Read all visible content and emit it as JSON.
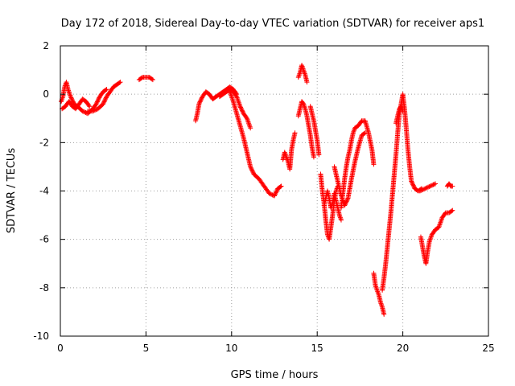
{
  "chart_data": {
    "type": "scatter",
    "title": "Day 172 of 2018, Sidereal Day-to-day VTEC variation (SDTVAR) for receiver aps1",
    "xlabel": "GPS time / hours",
    "ylabel": "SDTVAR / TECUs",
    "xlim": [
      0,
      25
    ],
    "ylim": [
      -10,
      2
    ],
    "xticks": [
      0,
      5,
      10,
      15,
      20,
      25
    ],
    "yticks": [
      -10,
      -8,
      -6,
      -4,
      -2,
      0,
      2
    ],
    "grid": true,
    "marker": "plus",
    "color": "#ff0000",
    "series": [
      {
        "name": "aps1",
        "segments": [
          [
            [
              0.05,
              -0.3
            ],
            [
              0.15,
              -0.1
            ],
            [
              0.25,
              0.3
            ],
            [
              0.35,
              0.5
            ],
            [
              0.45,
              0.2
            ],
            [
              0.6,
              -0.1
            ],
            [
              0.8,
              -0.4
            ],
            [
              1.0,
              -0.5
            ],
            [
              1.3,
              -0.7
            ],
            [
              1.6,
              -0.8
            ],
            [
              1.9,
              -0.6
            ],
            [
              2.1,
              -0.4
            ],
            [
              2.3,
              -0.1
            ],
            [
              2.5,
              0.1
            ],
            [
              2.7,
              0.2
            ]
          ],
          [
            [
              0.1,
              -0.6
            ],
            [
              0.3,
              -0.5
            ],
            [
              0.5,
              -0.3
            ],
            [
              0.7,
              -0.5
            ],
            [
              0.9,
              -0.6
            ],
            [
              1.1,
              -0.4
            ],
            [
              1.3,
              -0.2
            ],
            [
              1.5,
              -0.3
            ],
            [
              1.7,
              -0.5
            ]
          ],
          [
            [
              1.6,
              -0.7
            ],
            [
              1.9,
              -0.7
            ],
            [
              2.2,
              -0.6
            ],
            [
              2.5,
              -0.4
            ],
            [
              2.7,
              -0.1
            ],
            [
              2.9,
              0.1
            ],
            [
              3.1,
              0.3
            ],
            [
              3.3,
              0.4
            ],
            [
              3.5,
              0.5
            ]
          ],
          [
            [
              4.6,
              0.6
            ],
            [
              4.8,
              0.7
            ],
            [
              5.0,
              0.7
            ],
            [
              5.2,
              0.7
            ],
            [
              5.4,
              0.6
            ]
          ],
          [
            [
              7.9,
              -1.1
            ],
            [
              8.0,
              -0.8
            ],
            [
              8.1,
              -0.4
            ],
            [
              8.3,
              -0.1
            ],
            [
              8.5,
              0.1
            ],
            [
              8.7,
              0.0
            ],
            [
              8.9,
              -0.2
            ],
            [
              9.1,
              -0.1
            ],
            [
              9.3,
              0.0
            ],
            [
              9.5,
              0.1
            ],
            [
              9.7,
              0.2
            ],
            [
              9.9,
              0.3
            ],
            [
              10.1,
              0.2
            ],
            [
              10.3,
              0.0
            ]
          ],
          [
            [
              9.3,
              -0.1
            ],
            [
              9.5,
              0.0
            ],
            [
              9.7,
              0.1
            ],
            [
              9.9,
              0.2
            ],
            [
              10.1,
              0.1
            ],
            [
              10.3,
              -0.1
            ],
            [
              10.5,
              -0.5
            ],
            [
              10.7,
              -0.8
            ],
            [
              10.9,
              -1.0
            ],
            [
              11.1,
              -1.4
            ]
          ],
          [
            [
              9.9,
              0.1
            ],
            [
              10.1,
              -0.3
            ],
            [
              10.3,
              -0.8
            ],
            [
              10.5,
              -1.3
            ],
            [
              10.7,
              -1.8
            ],
            [
              10.9,
              -2.4
            ],
            [
              11.1,
              -3.0
            ],
            [
              11.3,
              -3.3
            ],
            [
              11.6,
              -3.5
            ],
            [
              11.9,
              -3.8
            ],
            [
              12.2,
              -4.1
            ],
            [
              12.5,
              -4.2
            ],
            [
              12.7,
              -3.9
            ],
            [
              12.9,
              -3.8
            ]
          ],
          [
            [
              13.0,
              -2.7
            ],
            [
              13.1,
              -2.4
            ],
            [
              13.2,
              -2.6
            ],
            [
              13.3,
              -2.8
            ],
            [
              13.4,
              -3.1
            ],
            [
              13.5,
              -2.3
            ],
            [
              13.6,
              -1.9
            ],
            [
              13.7,
              -1.6
            ]
          ],
          [
            [
              13.9,
              0.7
            ],
            [
              14.0,
              0.9
            ],
            [
              14.1,
              1.2
            ],
            [
              14.2,
              1.0
            ],
            [
              14.3,
              0.8
            ],
            [
              14.4,
              0.5
            ]
          ],
          [
            [
              13.9,
              -0.9
            ],
            [
              14.0,
              -0.6
            ],
            [
              14.1,
              -0.3
            ],
            [
              14.2,
              -0.4
            ],
            [
              14.3,
              -0.6
            ],
            [
              14.4,
              -0.9
            ],
            [
              14.5,
              -1.3
            ],
            [
              14.6,
              -1.7
            ],
            [
              14.7,
              -2.2
            ],
            [
              14.8,
              -2.6
            ]
          ],
          [
            [
              14.6,
              -0.5
            ],
            [
              14.7,
              -0.8
            ],
            [
              14.8,
              -1.1
            ],
            [
              14.9,
              -1.5
            ],
            [
              15.0,
              -1.9
            ],
            [
              15.1,
              -2.5
            ]
          ],
          [
            [
              15.2,
              -3.3
            ],
            [
              15.3,
              -4.0
            ],
            [
              15.4,
              -4.5
            ],
            [
              15.5,
              -5.2
            ],
            [
              15.6,
              -5.8
            ],
            [
              15.7,
              -6.0
            ],
            [
              15.8,
              -5.5
            ],
            [
              15.9,
              -5.0
            ],
            [
              16.0,
              -4.4
            ],
            [
              16.1,
              -4.0
            ],
            [
              16.2,
              -3.8
            ]
          ],
          [
            [
              15.4,
              -4.6
            ],
            [
              15.5,
              -4.3
            ],
            [
              15.6,
              -4.0
            ],
            [
              15.7,
              -4.3
            ],
            [
              15.8,
              -4.7
            ],
            [
              15.9,
              -4.5
            ],
            [
              16.0,
              -4.1
            ],
            [
              16.1,
              -4.4
            ],
            [
              16.2,
              -4.7
            ],
            [
              16.3,
              -5.0
            ],
            [
              16.4,
              -5.2
            ]
          ],
          [
            [
              16.0,
              -3.0
            ],
            [
              16.2,
              -3.6
            ],
            [
              16.4,
              -4.2
            ],
            [
              16.6,
              -4.6
            ],
            [
              16.8,
              -4.3
            ],
            [
              17.0,
              -3.5
            ],
            [
              17.2,
              -2.8
            ],
            [
              17.4,
              -2.2
            ],
            [
              17.6,
              -1.7
            ],
            [
              17.8,
              -1.6
            ]
          ],
          [
            [
              16.4,
              -4.7
            ],
            [
              16.5,
              -4.1
            ],
            [
              16.6,
              -3.5
            ],
            [
              16.7,
              -3.0
            ],
            [
              16.8,
              -2.6
            ],
            [
              16.9,
              -2.3
            ],
            [
              17.0,
              -1.9
            ],
            [
              17.1,
              -1.6
            ],
            [
              17.2,
              -1.4
            ],
            [
              17.4,
              -1.3
            ],
            [
              17.6,
              -1.1
            ],
            [
              17.8,
              -1.1
            ],
            [
              18.0,
              -1.6
            ],
            [
              18.2,
              -2.3
            ],
            [
              18.3,
              -2.9
            ]
          ],
          [
            [
              18.3,
              -7.4
            ],
            [
              18.4,
              -7.9
            ],
            [
              18.5,
              -8.1
            ],
            [
              18.6,
              -8.3
            ],
            [
              18.7,
              -8.6
            ],
            [
              18.8,
              -8.8
            ],
            [
              18.9,
              -9.1
            ]
          ],
          [
            [
              18.8,
              -8.1
            ],
            [
              18.9,
              -7.6
            ],
            [
              19.0,
              -7.0
            ],
            [
              19.1,
              -6.3
            ],
            [
              19.2,
              -5.6
            ],
            [
              19.3,
              -4.9
            ],
            [
              19.4,
              -4.1
            ],
            [
              19.5,
              -3.3
            ],
            [
              19.6,
              -2.5
            ],
            [
              19.7,
              -1.6
            ],
            [
              19.8,
              -0.8
            ],
            [
              19.9,
              -0.4
            ],
            [
              20.0,
              0.0
            ],
            [
              20.1,
              -0.6
            ],
            [
              20.2,
              -1.4
            ],
            [
              20.3,
              -2.3
            ],
            [
              20.4,
              -3.0
            ],
            [
              20.5,
              -3.6
            ],
            [
              20.7,
              -3.9
            ],
            [
              20.9,
              -4.0
            ],
            [
              21.1,
              -3.9
            ]
          ],
          [
            [
              19.6,
              -1.2
            ],
            [
              19.7,
              -0.9
            ],
            [
              19.8,
              -0.6
            ],
            [
              19.9,
              -0.5
            ],
            [
              20.0,
              -0.7
            ]
          ],
          [
            [
              21.0,
              -4.0
            ],
            [
              21.3,
              -3.9
            ],
            [
              21.6,
              -3.8
            ],
            [
              21.9,
              -3.7
            ]
          ],
          [
            [
              21.05,
              -5.9
            ],
            [
              21.15,
              -6.3
            ],
            [
              21.25,
              -6.7
            ],
            [
              21.35,
              -7.0
            ],
            [
              21.45,
              -6.5
            ],
            [
              21.55,
              -6.1
            ],
            [
              21.7,
              -5.8
            ],
            [
              21.9,
              -5.6
            ],
            [
              22.1,
              -5.5
            ],
            [
              22.3,
              -5.1
            ],
            [
              22.5,
              -4.9
            ],
            [
              22.7,
              -4.9
            ],
            [
              22.9,
              -4.8
            ]
          ],
          [
            [
              22.6,
              -3.8
            ],
            [
              22.7,
              -3.7
            ],
            [
              22.8,
              -3.8
            ],
            [
              22.9,
              -3.8
            ]
          ]
        ]
      }
    ]
  }
}
